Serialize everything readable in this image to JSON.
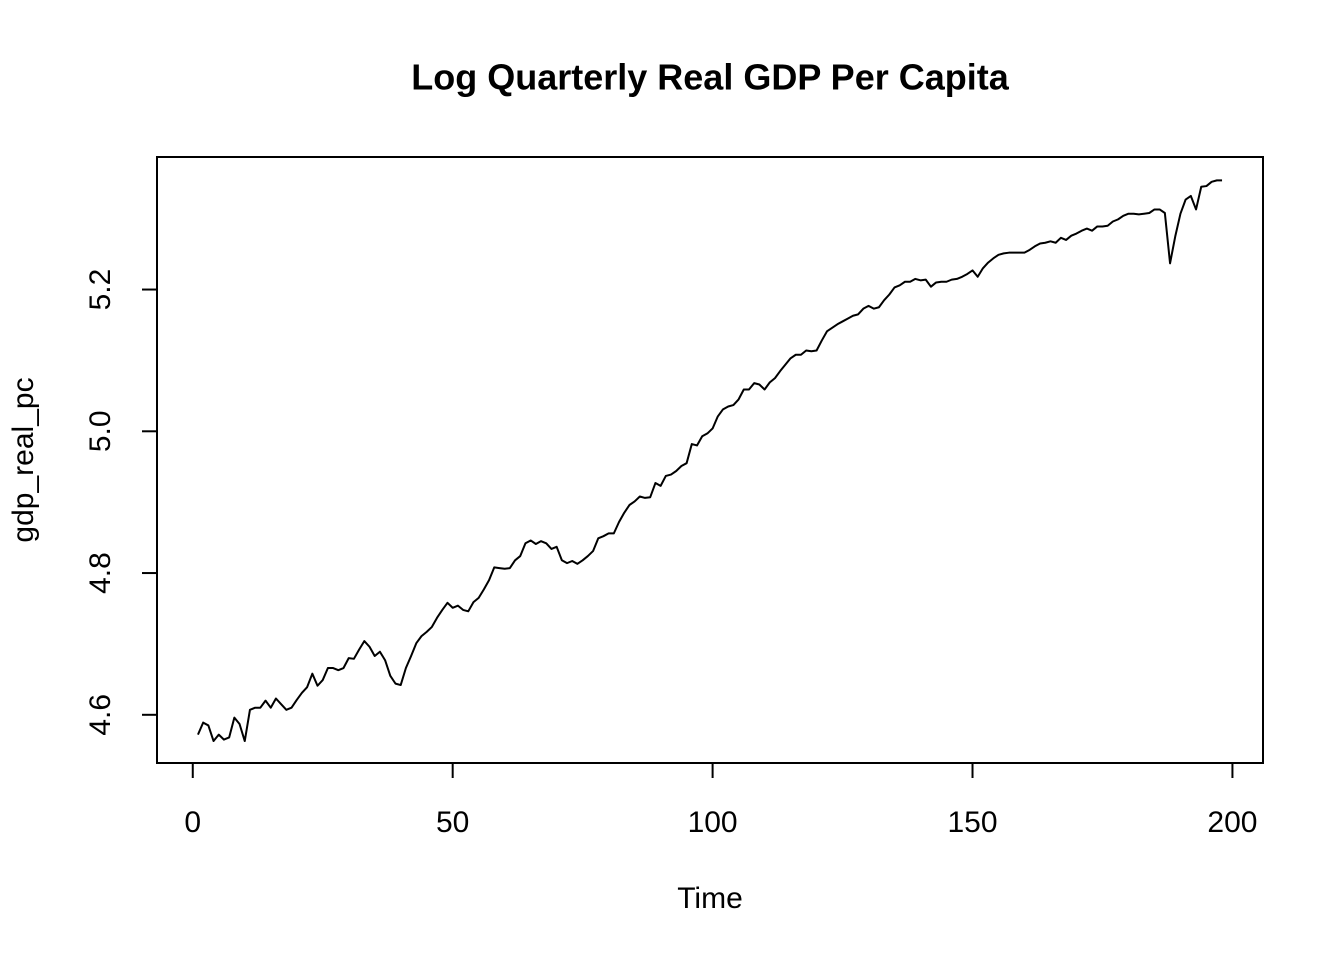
{
  "chart_data": {
    "type": "line",
    "title": "Log Quarterly Real GDP Per Capita",
    "xlabel": "Time",
    "ylabel": "gdp_real_pc",
    "color": "#000000",
    "x": [
      1,
      2,
      3,
      4,
      5,
      6,
      7,
      8,
      9,
      10,
      11,
      12,
      13,
      14,
      15,
      16,
      17,
      18,
      19,
      20,
      21,
      22,
      23,
      24,
      25,
      26,
      27,
      28,
      29,
      30,
      31,
      32,
      33,
      34,
      35,
      36,
      37,
      38,
      39,
      40,
      41,
      42,
      43,
      44,
      45,
      46,
      47,
      48,
      49,
      50,
      51,
      52,
      53,
      54,
      55,
      56,
      57,
      58,
      59,
      60,
      61,
      62,
      63,
      64,
      65,
      66,
      67,
      68,
      69,
      70,
      71,
      72,
      73,
      74,
      75,
      76,
      77,
      78,
      79,
      80,
      81,
      82,
      83,
      84,
      85,
      86,
      87,
      88,
      89,
      90,
      91,
      92,
      93,
      94,
      95,
      96,
      97,
      98,
      99,
      100,
      101,
      102,
      103,
      104,
      105,
      106,
      107,
      108,
      109,
      110,
      111,
      112,
      113,
      114,
      115,
      116,
      117,
      118,
      119,
      120,
      121,
      122,
      123,
      124,
      125,
      126,
      127,
      128,
      129,
      130,
      131,
      132,
      133,
      134,
      135,
      136,
      137,
      138,
      139,
      140,
      141,
      142,
      143,
      144,
      145,
      146,
      147,
      148,
      149,
      150,
      151,
      152,
      153,
      154,
      155,
      156,
      157,
      158,
      159,
      160,
      161,
      162,
      163,
      164,
      165,
      166,
      167,
      168,
      169,
      170,
      171,
      172,
      173,
      174,
      175,
      176,
      177,
      178,
      179,
      180,
      181,
      182,
      183,
      184,
      185,
      186,
      187,
      188,
      189,
      190,
      191,
      192,
      193,
      194,
      195,
      196,
      197,
      198
    ],
    "values": [
      4.572,
      4.589,
      4.585,
      4.563,
      4.572,
      4.565,
      4.568,
      4.596,
      4.587,
      4.563,
      4.607,
      4.61,
      4.61,
      4.62,
      4.61,
      4.623,
      4.615,
      4.607,
      4.61,
      4.621,
      4.631,
      4.639,
      4.658,
      4.641,
      4.649,
      4.666,
      4.666,
      4.663,
      4.666,
      4.68,
      4.679,
      4.692,
      4.704,
      4.696,
      4.683,
      4.689,
      4.677,
      4.655,
      4.644,
      4.642,
      4.666,
      4.683,
      4.701,
      4.711,
      4.717,
      4.724,
      4.737,
      4.748,
      4.758,
      4.751,
      4.754,
      4.748,
      4.746,
      4.759,
      4.765,
      4.777,
      4.79,
      4.808,
      4.807,
      4.806,
      4.807,
      4.818,
      4.824,
      4.842,
      4.846,
      4.841,
      4.845,
      4.842,
      4.834,
      4.837,
      4.818,
      4.814,
      4.817,
      4.813,
      4.818,
      4.824,
      4.831,
      4.849,
      4.852,
      4.856,
      4.856,
      4.872,
      4.885,
      4.896,
      4.901,
      4.908,
      4.906,
      4.907,
      4.927,
      4.923,
      4.937,
      4.939,
      4.944,
      4.951,
      4.955,
      4.982,
      4.98,
      4.993,
      4.997,
      5.004,
      5.021,
      5.031,
      5.035,
      5.037,
      5.045,
      5.059,
      5.059,
      5.068,
      5.066,
      5.059,
      5.069,
      5.075,
      5.085,
      5.094,
      5.103,
      5.108,
      5.108,
      5.114,
      5.113,
      5.114,
      5.128,
      5.141,
      5.146,
      5.151,
      5.155,
      5.159,
      5.163,
      5.165,
      5.173,
      5.177,
      5.173,
      5.175,
      5.185,
      5.193,
      5.203,
      5.206,
      5.211,
      5.211,
      5.215,
      5.213,
      5.214,
      5.204,
      5.21,
      5.211,
      5.211,
      5.214,
      5.215,
      5.218,
      5.222,
      5.227,
      5.218,
      5.23,
      5.238,
      5.244,
      5.249,
      5.251,
      5.252,
      5.252,
      5.252,
      5.252,
      5.256,
      5.261,
      5.265,
      5.266,
      5.268,
      5.266,
      5.273,
      5.27,
      5.276,
      5.279,
      5.283,
      5.286,
      5.283,
      5.289,
      5.289,
      5.29,
      5.296,
      5.299,
      5.304,
      5.307,
      5.307,
      5.306,
      5.307,
      5.308,
      5.313,
      5.313,
      5.308,
      5.237,
      5.275,
      5.307,
      5.327,
      5.332,
      5.313,
      5.345,
      5.346,
      5.352,
      5.354,
      5.354
    ],
    "xlim": [
      -6.88,
      205.88
    ],
    "xticks": [
      0,
      50,
      100,
      150,
      200
    ],
    "ylim": [
      4.532,
      5.387
    ],
    "yticks": [
      4.6,
      4.8,
      {
        "value": 5,
        "label": "5.0"
      },
      5.2
    ]
  }
}
